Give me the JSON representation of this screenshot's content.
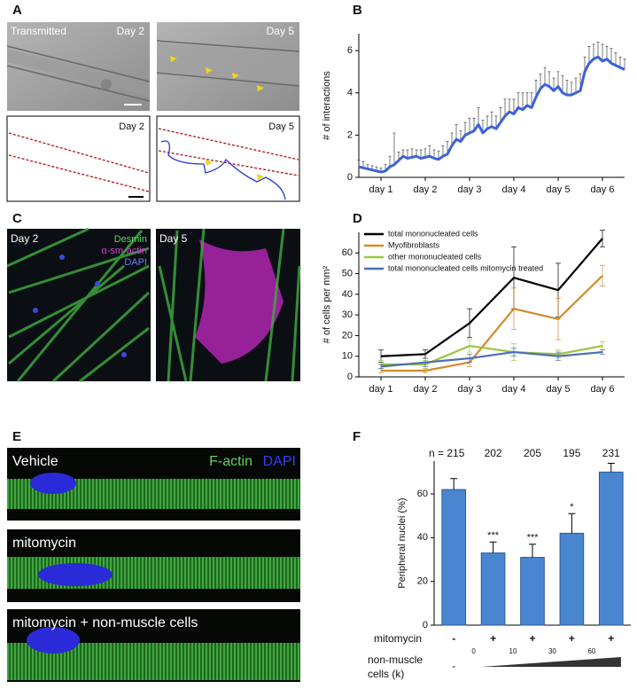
{
  "panel_labels": [
    "A",
    "B",
    "C",
    "D",
    "E",
    "F"
  ],
  "panel_a": {
    "top_left": [
      "Transmitted",
      "Day 2"
    ],
    "top_right": "Day 5",
    "bottom_left": "Day 2",
    "bottom_right": "Day 5"
  },
  "panel_c": {
    "left": "Day 2",
    "stains": [
      "Desmin",
      "α-sm-actin",
      "DAPI"
    ],
    "right": "Day 5"
  },
  "panel_e": {
    "stains": [
      "F-actin",
      "DAPI"
    ],
    "conditions": [
      "Vehicle",
      "mitomycin",
      "mitomycin + non-muscle cells"
    ]
  },
  "chart_data": [
    {
      "type": "line",
      "ylabel": "# of interactions",
      "x": [
        0,
        0.1,
        0.2,
        0.3,
        0.4,
        0.5,
        0.6,
        0.7,
        0.8,
        0.9,
        1,
        1.1,
        1.2,
        1.3,
        1.4,
        1.5,
        1.6,
        1.7,
        1.8,
        1.9,
        2,
        2.1,
        2.2,
        2.3,
        2.4,
        2.5,
        2.6,
        2.7,
        2.8,
        2.9,
        3,
        3.1,
        3.2,
        3.3,
        3.4,
        3.5,
        3.6,
        3.7,
        3.8,
        3.9,
        4,
        4.1,
        4.2,
        4.3,
        4.4,
        4.5,
        4.6,
        4.7,
        4.8,
        4.9,
        5,
        5.1,
        5.2,
        5.3,
        5.4,
        5.5,
        5.6,
        5.7,
        5.8,
        5.9,
        6
      ],
      "series": [
        {
          "color": "#3b62d8",
          "values": [
            0.5,
            0.45,
            0.4,
            0.35,
            0.3,
            0.25,
            0.3,
            0.5,
            0.6,
            0.8,
            1.0,
            0.9,
            0.95,
            1.0,
            0.9,
            0.95,
            1.0,
            0.9,
            0.85,
            1.0,
            1.1,
            1.5,
            1.8,
            1.7,
            2.0,
            2.1,
            2.2,
            2.5,
            2.1,
            2.3,
            2.4,
            2.3,
            2.6,
            2.9,
            3.1,
            3.0,
            3.3,
            3.2,
            3.4,
            3.3,
            3.8,
            4.2,
            4.4,
            4.3,
            4.1,
            4.3,
            4.0,
            3.9,
            3.9,
            4.0,
            4.1,
            5.0,
            5.4,
            5.6,
            5.7,
            5.5,
            5.6,
            5.4,
            5.3,
            5.2,
            5.1
          ],
          "errors": [
            0.3,
            0.3,
            0.2,
            0.2,
            0.2,
            0.2,
            0.3,
            0.5,
            1.5,
            0.4,
            0.3,
            0.4,
            0.4,
            0.3,
            0.4,
            0.4,
            0.5,
            0.4,
            0.4,
            0.5,
            0.6,
            0.6,
            0.7,
            0.5,
            0.6,
            0.7,
            0.6,
            0.8,
            0.6,
            0.6,
            0.7,
            0.6,
            0.7,
            0.8,
            0.6,
            0.7,
            0.7,
            0.8,
            0.6,
            0.7,
            0.8,
            0.7,
            0.8,
            0.7,
            0.6,
            0.7,
            0.8,
            0.7,
            0.6,
            0.7,
            0.8,
            0.7,
            0.8,
            0.7,
            0.7,
            0.8,
            0.6,
            0.7,
            0.6,
            0.5,
            0.5
          ]
        }
      ],
      "error_style": "up",
      "error_color": "#444",
      "xlim": [
        0,
        6
      ],
      "xticks": [
        {
          "value": 0.5,
          "label": "day 1"
        },
        {
          "value": 1.5,
          "label": "day 2"
        },
        {
          "value": 2.5,
          "label": "day 3"
        },
        {
          "value": 3.5,
          "label": "day 4"
        },
        {
          "value": 4.5,
          "label": "day 5"
        },
        {
          "value": 5.5,
          "label": "day 6"
        }
      ],
      "ylim": [
        0,
        6.8
      ],
      "yticks": [
        0,
        2,
        4,
        6
      ]
    },
    {
      "type": "line",
      "ylabel": "# of cells per mm²",
      "categories": [
        "day 1",
        "day 2",
        "day 3",
        "day 4",
        "day 5",
        "day 6"
      ],
      "series": [
        {
          "name": "total mononucleated cells",
          "color": "#000000",
          "values": [
            10,
            11,
            26,
            48,
            42,
            67
          ],
          "errors": [
            3,
            2,
            7,
            15,
            13,
            4
          ]
        },
        {
          "name": "Myofibroblasts",
          "color": "#d4892c",
          "values": [
            3,
            3,
            7,
            33,
            28,
            49
          ],
          "errors": [
            1,
            1,
            2,
            10,
            10,
            5
          ]
        },
        {
          "name": "other mononucleated cells",
          "color": "#9cc43e",
          "values": [
            6,
            6,
            15,
            12,
            11,
            15
          ],
          "errors": [
            2,
            2,
            3,
            4,
            2,
            2
          ]
        },
        {
          "name": "total mononucleated cells mitomycin treated",
          "color": "#4a6db6",
          "values": [
            5,
            7,
            9,
            12,
            10,
            12
          ],
          "errors": [
            1,
            2,
            2,
            2,
            2,
            1
          ]
        }
      ],
      "error_style": "both",
      "error_color": "#000000",
      "legend": "upper left",
      "ylim": [
        0,
        70
      ],
      "yticks": [
        0,
        10,
        20,
        30,
        40,
        50,
        60
      ]
    },
    {
      "type": "bar",
      "ylabel": "Peripheral nuclei (%)",
      "color": "#4a86d0",
      "values": [
        62,
        33,
        31,
        42,
        70
      ],
      "errors": [
        5,
        5,
        6,
        9,
        4
      ],
      "n_labels": [
        "n = 215",
        "202",
        "205",
        "195",
        "231"
      ],
      "significance": [
        null,
        "***",
        "***",
        "*",
        null
      ],
      "mitomycin": {
        "label": "mitomycin",
        "signs": [
          "-",
          "+",
          "+",
          "+",
          "+"
        ]
      },
      "non_muscle": {
        "label": [
          "non-muscle",
          "cells (k)"
        ],
        "amounts": [
          "-",
          "0",
          "10",
          "30",
          "60"
        ]
      },
      "ylim": [
        0,
        75
      ],
      "yticks": [
        0,
        20,
        40,
        60
      ]
    }
  ]
}
